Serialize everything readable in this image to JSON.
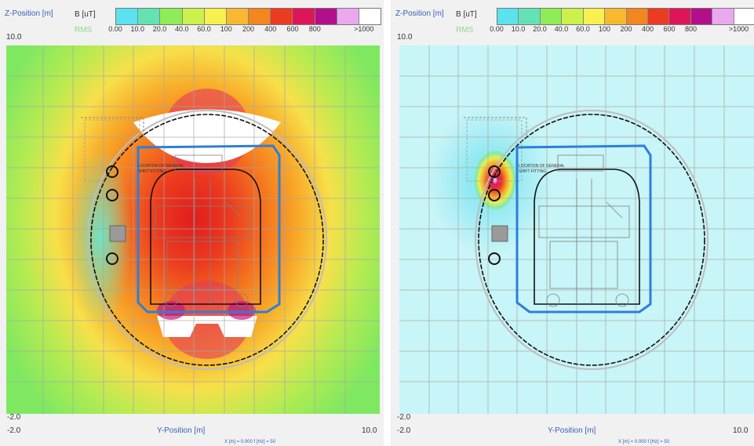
{
  "panels": [
    {
      "z_axis_title": "Z-Position [m]",
      "colorbar_title": "B [uT]",
      "rms_label": "RMS",
      "z_top": "10.0",
      "z_bottom": "-2.0",
      "y_axis_title": "Y-Position [m]",
      "y_left": "-2.0",
      "y_right": "10.0",
      "footer": "X [m] = 0.000     f [Hz] = 50"
    },
    {
      "z_axis_title": "Z-Position [m]",
      "colorbar_title": "B [uT]",
      "rms_label": "RMS",
      "z_top": "10.0",
      "z_bottom": "-2.0",
      "y_axis_title": "Y-Position [m]",
      "y_left": "-2.0",
      "y_right": "10.0",
      "footer": "X [m] = 0.000     f [Hz] = 50"
    }
  ],
  "colorbar": {
    "colors": [
      "#5ae3ef",
      "#63e2b6",
      "#8eec57",
      "#cbf14a",
      "#f7f04e",
      "#f8b830",
      "#f3861f",
      "#eb3b21",
      "#de1658",
      "#b20f8a",
      "#eaa8ef",
      "#ffffff"
    ],
    "ticks": [
      "0.00",
      "10.0",
      "20.0",
      "40.0",
      "60.0",
      "100",
      "200",
      "400",
      "600",
      "800",
      ">1000"
    ]
  },
  "chart_data": [
    {
      "type": "heatmap",
      "title": "",
      "xlabel": "Y-Position [m]",
      "ylabel": "Z-Position [m]",
      "xlim": [
        -2.0,
        10.0
      ],
      "ylim": [
        -2.0,
        10.0
      ],
      "colorbar_label": "B [uT] RMS",
      "colorbar_bins": [
        "0.00",
        "10.0",
        "20.0",
        "40.0",
        "60.0",
        "100",
        "200",
        "400",
        "600",
        "800",
        ">1000"
      ],
      "frequency_hz": 50,
      "x_m": 0.0,
      "field_description": "high field (>1000 uT) at roof and floor of train, 200-800 uT throughout carriage interior, decreasing to 20-60 uT toward the plot edges"
    },
    {
      "type": "heatmap",
      "title": "",
      "xlabel": "Y-Position [m]",
      "ylabel": "Z-Position [m]",
      "xlim": [
        -2.0,
        10.0
      ],
      "ylim": [
        -2.0,
        10.0
      ],
      "colorbar_label": "B [uT] RMS",
      "colorbar_bins": [
        "0.00",
        "10.0",
        "20.0",
        "40.0",
        "60.0",
        "100",
        "200",
        "400",
        "600",
        "800",
        ">1000"
      ],
      "frequency_hz": 50,
      "x_m": 0.0,
      "field_description": "field below 10 uT almost everywhere; localized hotspot up to >1000 uT at the cables near the left tunnel wall"
    }
  ]
}
